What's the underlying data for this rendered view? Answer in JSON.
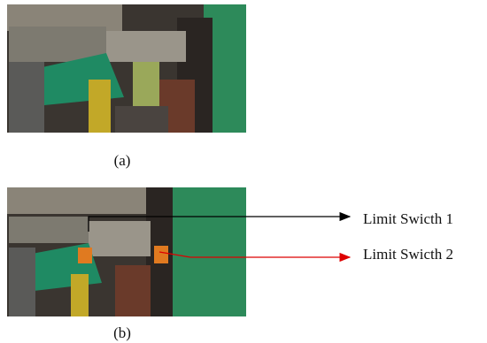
{
  "panels": [
    {
      "label": "(a)"
    },
    {
      "label": "(b)"
    }
  ],
  "annotations": [
    {
      "text": "Limit Swicth 1"
    },
    {
      "text": "Limit Swicth 2"
    }
  ]
}
